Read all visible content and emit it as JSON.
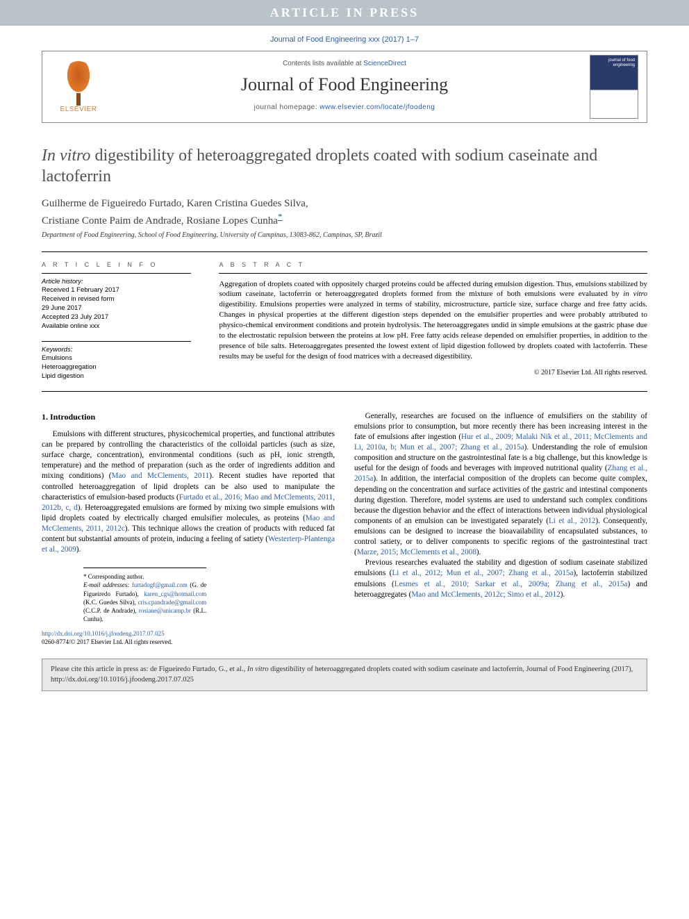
{
  "banner": "ARTICLE IN PRESS",
  "top_citation": "Journal of Food Engineering xxx (2017) 1–7",
  "header": {
    "contents_prefix": "Contents lists available at ",
    "contents_link": "ScienceDirect",
    "journal_name": "Journal of Food Engineering",
    "homepage_prefix": "journal homepage: ",
    "homepage_link": "www.elsevier.com/locate/jfoodeng",
    "publisher": "ELSEVIER",
    "cover_text": "journal of\nfood engineering"
  },
  "title_italic": "In vitro",
  "title_rest": " digestibility of heteroaggregated droplets coated with sodium caseinate and lactoferrin",
  "authors_line1": "Guilherme de Figueiredo Furtado, Karen Cristina Guedes Silva,",
  "authors_line2": "Cristiane Conte Paim de Andrade, Rosiane Lopes Cunha",
  "corr_mark": "*",
  "affiliation": "Department of Food Engineering, School of Food Engineering, University of Campinas, 13083-862, Campinas, SP, Brazil",
  "info": {
    "heading": "A R T I C L E   I N F O",
    "history_label": "Article history:",
    "received": "Received 1 February 2017",
    "revised1": "Received in revised form",
    "revised2": "29 June 2017",
    "accepted": "Accepted 23 July 2017",
    "online": "Available online xxx",
    "kw_label": "Keywords:",
    "kw1": "Emulsions",
    "kw2": "Heteroaggregation",
    "kw3": "Lipid digestion"
  },
  "abstract": {
    "heading": "A B S T R A C T",
    "text_a": "Aggregation of droplets coated with oppositely charged proteins could be affected during emulsion digestion. Thus, emulsions stabilized by sodium caseinate, lactoferrin or heteroaggregated droplets formed from the mixture of both emulsions were evaluated by ",
    "text_italic": "in vitro",
    "text_b": " digestibility. Emulsions properties were analyzed in terms of stability, microstructure, particle size, surface charge and free fatty acids. Changes in physical properties at the different digestion steps depended on the emulsifier properties and were probably attributed to physico-chemical environment conditions and protein hydrolysis. The heteroaggregates undid in simple emulsions at the gastric phase due to the electrostatic repulsion between the proteins at low pH. Free fatty acids release depended on emulsifier properties, in addition to the presence of bile salts. Heteroaggregates presented the lowest extent of lipid digestion followed by droplets coated with lactoferrin. These results may be useful for the design of food matrices with a decreased digestibility.",
    "copyright": "© 2017 Elsevier Ltd. All rights reserved."
  },
  "body": {
    "section_heading": "1.  Introduction",
    "p1a": "Emulsions with different structures, physicochemical properties, and functional attributes can be prepared by controlling the characteristics of the colloidal particles (such as size, surface charge, concentration), environmental conditions (such as pH, ionic strength, temperature) and the method of preparation (such as the order of ingredients addition and mixing conditions) (",
    "p1r1": "Mao and McClements, 2011",
    "p1b": "). Recent studies have reported that controlled heteroaggregation of lipid droplets can be also used to manipulate the characteristics of emulsion-based products (",
    "p1r2": "Furtado et al., 2016; Mao and McClements, 2011, 2012b, c, d",
    "p1c": "). Heteroaggregated emulsions are formed by mixing two simple emulsions with lipid droplets coated by electrically charged emulsifier molecules, as proteins (",
    "p1r3": "Mao and McClements, 2011, 2012c",
    "p1d": "). This technique allows the creation of products with reduced fat content but substantial amounts of protein, inducing a feeling of satiety (",
    "p1r4": "Westerterp-Plantenga et al., 2009",
    "p1e": ").",
    "p2a": "Generally, researches are focused on the influence of emulsifiers on the stability of emulsions prior to consumption, but more recently there has been increasing interest in the fate of emulsions after ingestion (",
    "p2r1": "Hur et al., 2009; Malaki Nik et al., 2011; McClements and Li, 2010a, b; Mun et al., 2007; Zhang et al., 2015a",
    "p2b": "). Understanding the role of emulsion composition and structure on the gastrointestinal fate is a big challenge, but this knowledge is useful for the design of foods and beverages with improved nutritional quality (",
    "p2r2": "Zhang et al., 2015a",
    "p2c": "). In addition, the interfacial composition of the droplets can become quite complex, depending on the concentration and surface activities of the gastric and intestinal components during digestion. Therefore, model systems are used to understand such complex conditions because the digestion behavior and the effect of interactions between individual physiological components of an emulsion can be investigated separately (",
    "p2r3": "Li et al., 2012",
    "p2d": "). Consequently, emulsions can be designed to increase the bioavailability of encapsulated substances, to control satiety, or to deliver components to specific regions of the gastrointestinal tract (",
    "p2r4": "Marze, 2015; McClements et al., 2008",
    "p2e": ").",
    "p3a": "Previous researches evaluated the stability and digestion of sodium caseinate stabilized emulsions (",
    "p3r1": "Li et al., 2012; Mun et al., 2007; Zhang et al., 2015a",
    "p3b": "), lactoferrin stabilized emulsions (",
    "p3r2": "Lesmes et al., 2010; Sarkar et al., 2009a; Zhang et al., 2015a",
    "p3c": ") and heteroaggregates (",
    "p3r3": "Mao and McClements, 2012c; Simo et al., 2012",
    "p3d": ")."
  },
  "footnotes": {
    "corr_label": "* Corresponding author.",
    "email_label": "E-mail addresses:",
    "e1": "furtadogf@gmail.com",
    "n1": " (G. de Figueiredo Furtado), ",
    "e2": "karen_cgs@hotmail.com",
    "n2": " (K.C. Guedes Silva), ",
    "e3": "cris.cpandrade@gmail.com",
    "n3": " (C.C.P. de Andrade), ",
    "e4": "rosiane@unicamp.br",
    "n4": " (R.L. Cunha)."
  },
  "doi": {
    "link": "http://dx.doi.org/10.1016/j.jfoodeng.2017.07.025",
    "issn": "0260-8774/© 2017 Elsevier Ltd. All rights reserved."
  },
  "cite_footer": {
    "a": "Please cite this article in press as: de Figueiredo Furtado, G., et al., ",
    "it": "In vitro",
    "b": " digestibility of heteroaggregated droplets coated with sodium caseinate and lactoferrin, Journal of Food Engineering (2017), http://dx.doi.org/10.1016/j.jfoodeng.2017.07.025"
  },
  "colors": {
    "banner_bg": "#b8c4c9",
    "link": "#2a5caa",
    "orange": "#e07a2a",
    "footer_bg": "#e8e8e8"
  }
}
